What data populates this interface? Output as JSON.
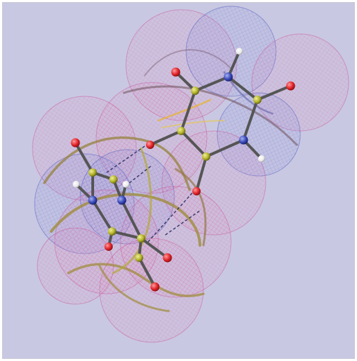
{
  "figure": {
    "background_color": "#c9c8e2",
    "surface_colors": {
      "oxygen_region": "#e25a8c",
      "nitrogen_region": "#5a64c8",
      "intersection_edge": "#a89a30"
    },
    "atom_colors": {
      "oxygen": "#e0242a",
      "nitrogen": "#3848b8",
      "carbon": "#b4b42a",
      "hydrogen": "#f2f2f2"
    },
    "bond_color": "#555555",
    "hbond_style": "dashed"
  }
}
